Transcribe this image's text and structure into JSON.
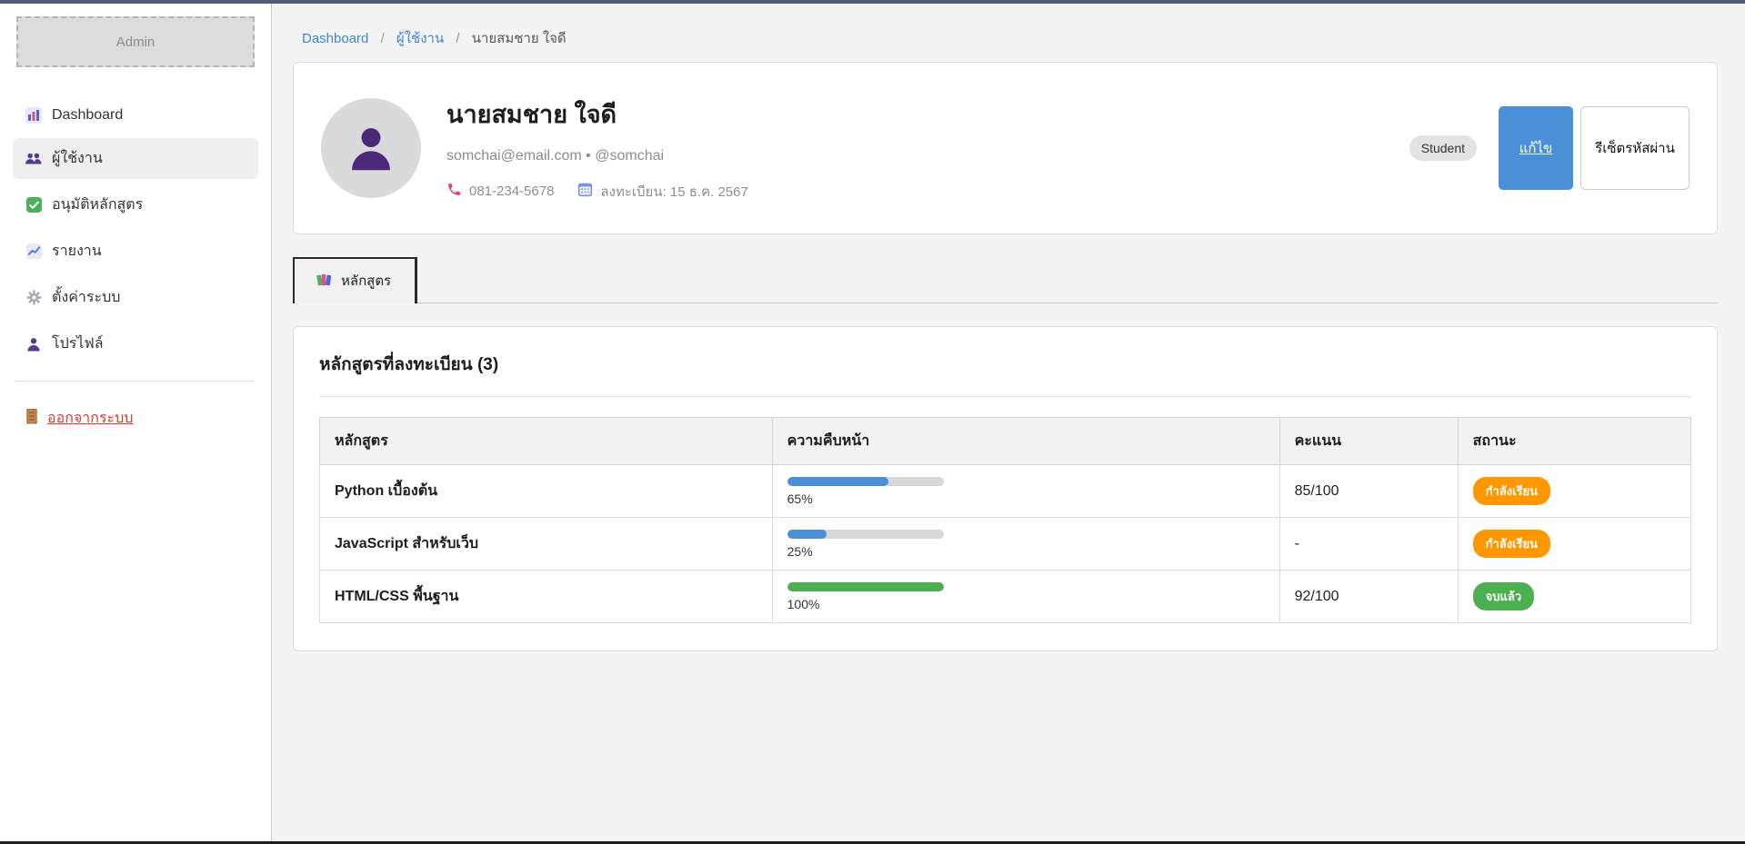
{
  "colors": {
    "top_strip": "#535a78",
    "accent_blue": "#4a90d9",
    "link_blue": "#3f83d8",
    "status_learning": "#ff9800",
    "status_done": "#4caf50",
    "progress_track": "#d8d8d8",
    "logout_red": "#de392c"
  },
  "sidebar": {
    "logo": "Admin",
    "items": [
      {
        "icon": "dashboard-icon",
        "label": "Dashboard"
      },
      {
        "icon": "users-icon",
        "label": "ผู้ใช้งาน"
      },
      {
        "icon": "approve-icon",
        "label": "อนุมัติหลักสูตร"
      },
      {
        "icon": "reports-icon",
        "label": "รายงาน"
      },
      {
        "icon": "settings-icon",
        "label": "ตั้งค่าระบบ"
      },
      {
        "icon": "profile-icon",
        "label": "โปรไฟล์"
      }
    ],
    "logout_label": "ออกจากระบบ"
  },
  "breadcrumb": {
    "link1": "Dashboard",
    "link2": "ผู้ใช้งาน",
    "current": "นายสมชาย ใจดี",
    "separator": "/"
  },
  "profile": {
    "name": "นายสมชาย ใจดี",
    "email_line": "somchai@email.com • @somchai",
    "phone": "081-234-5678",
    "registered": "ลงทะเบียน: 15 ธ.ค. 2567",
    "role_badge": "Student",
    "edit_button": "แก้ไข",
    "reset_button": "รีเซ็ตรหัสผ่าน"
  },
  "tab": {
    "label": "หลักสูตร"
  },
  "courses": {
    "title": "หลักสูตรที่ลงทะเบียน (3)",
    "columns": {
      "c1": "หลักสูตร",
      "c2": "ความคืบหน้า",
      "c3": "คะแนน",
      "c4": "สถานะ"
    },
    "rows": [
      {
        "name": "Python เบื้องต้น",
        "progress": 65,
        "progress_label": "65%",
        "bar_color": "#4a90d9",
        "score": "85/100",
        "status": "กำลังเรียน",
        "status_color": "#ff9800"
      },
      {
        "name": "JavaScript สำหรับเว็บ",
        "progress": 25,
        "progress_label": "25%",
        "bar_color": "#4a90d9",
        "score": "-",
        "status": "กำลังเรียน",
        "status_color": "#ff9800"
      },
      {
        "name": "HTML/CSS พื้นฐาน",
        "progress": 100,
        "progress_label": "100%",
        "bar_color": "#4caf50",
        "score": "92/100",
        "status": "จบแล้ว",
        "status_color": "#4caf50"
      }
    ]
  }
}
